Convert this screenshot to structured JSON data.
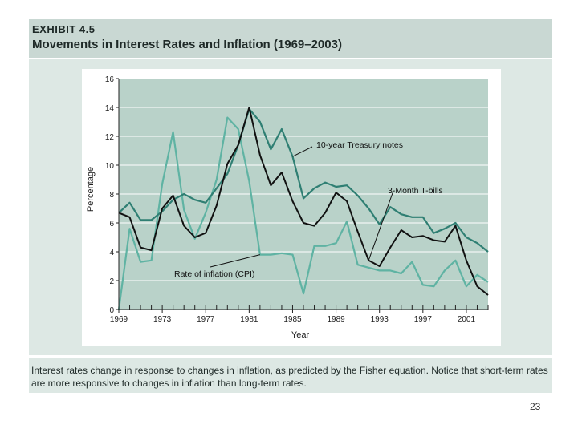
{
  "exhibit": {
    "label": "EXHIBIT 4.5",
    "title": "Movements in Interest Rates and Inflation (1969–2003)"
  },
  "caption": "Interest rates change in response to changes in inflation, as predicted by the Fisher equation. Notice that short-term rates are more responsive to changes in inflation than long-term rates.",
  "page_number": "23",
  "colors": {
    "header_bg": "#c9d8d3",
    "panel_bg": "#dde8e4",
    "plot_bg": "#b9d2c9",
    "treasury_line": "#2f7f73",
    "tbill_line": "#111111",
    "cpi_line": "#5fb3a3"
  },
  "chart_data": {
    "type": "line",
    "title": "",
    "xlabel": "Year",
    "ylabel": "Percentage",
    "xlim": [
      1969,
      2003
    ],
    "ylim": [
      0,
      16
    ],
    "x_ticks": [
      "1969",
      "1973",
      "1977",
      "1981",
      "1985",
      "1989",
      "1993",
      "1997",
      "2001"
    ],
    "y_ticks": [
      "0",
      "2",
      "4",
      "6",
      "8",
      "10",
      "12",
      "14",
      "16"
    ],
    "x": [
      1969,
      1970,
      1971,
      1972,
      1973,
      1974,
      1975,
      1976,
      1977,
      1978,
      1979,
      1980,
      1981,
      1982,
      1983,
      1984,
      1985,
      1986,
      1987,
      1988,
      1989,
      1990,
      1991,
      1992,
      1993,
      1994,
      1995,
      1996,
      1997,
      1998,
      1999,
      2000,
      2001,
      2002,
      2003
    ],
    "series": [
      {
        "name": "10-year Treasury notes",
        "label": "10-year Treasury notes",
        "values": [
          6.7,
          7.4,
          6.2,
          6.2,
          6.8,
          7.6,
          8.0,
          7.6,
          7.4,
          8.4,
          9.4,
          11.4,
          13.9,
          13.0,
          11.1,
          12.5,
          10.6,
          7.7,
          8.4,
          8.8,
          8.5,
          8.6,
          7.9,
          7.0,
          5.9,
          7.1,
          6.6,
          6.4,
          6.4,
          5.3,
          5.6,
          6.0,
          5.0,
          4.6,
          4.0
        ]
      },
      {
        "name": "3-Month T-bills",
        "label": "3-Month T-bills",
        "values": [
          6.7,
          6.4,
          4.3,
          4.1,
          7.0,
          7.9,
          5.8,
          5.0,
          5.3,
          7.2,
          10.1,
          11.4,
          14.0,
          10.7,
          8.6,
          9.5,
          7.5,
          6.0,
          5.8,
          6.7,
          8.1,
          7.5,
          5.4,
          3.4,
          3.0,
          4.3,
          5.5,
          5.0,
          5.1,
          4.8,
          4.7,
          5.8,
          3.4,
          1.6,
          1.0
        ]
      },
      {
        "name": "Rate of inflation (CPI)",
        "label": "Rate of inflation (CPI)",
        "values": [
          0.0,
          5.6,
          3.3,
          3.4,
          8.7,
          12.3,
          6.9,
          4.9,
          6.7,
          9.0,
          13.3,
          12.5,
          8.9,
          3.8,
          3.8,
          3.9,
          3.8,
          1.1,
          4.4,
          4.4,
          4.6,
          6.1,
          3.1,
          2.9,
          2.7,
          2.7,
          2.5,
          3.3,
          1.7,
          1.6,
          2.7,
          3.4,
          1.6,
          2.4,
          1.9
        ]
      }
    ],
    "annotations": [
      {
        "text": "10-year Treasury notes",
        "series": "10-year Treasury notes"
      },
      {
        "text": "3-Month T-bills",
        "series": "3-Month T-bills"
      },
      {
        "text": "Rate of inflation (CPI)",
        "series": "Rate of inflation (CPI)"
      }
    ],
    "grid": true,
    "legend": "none (inline annotations)"
  }
}
